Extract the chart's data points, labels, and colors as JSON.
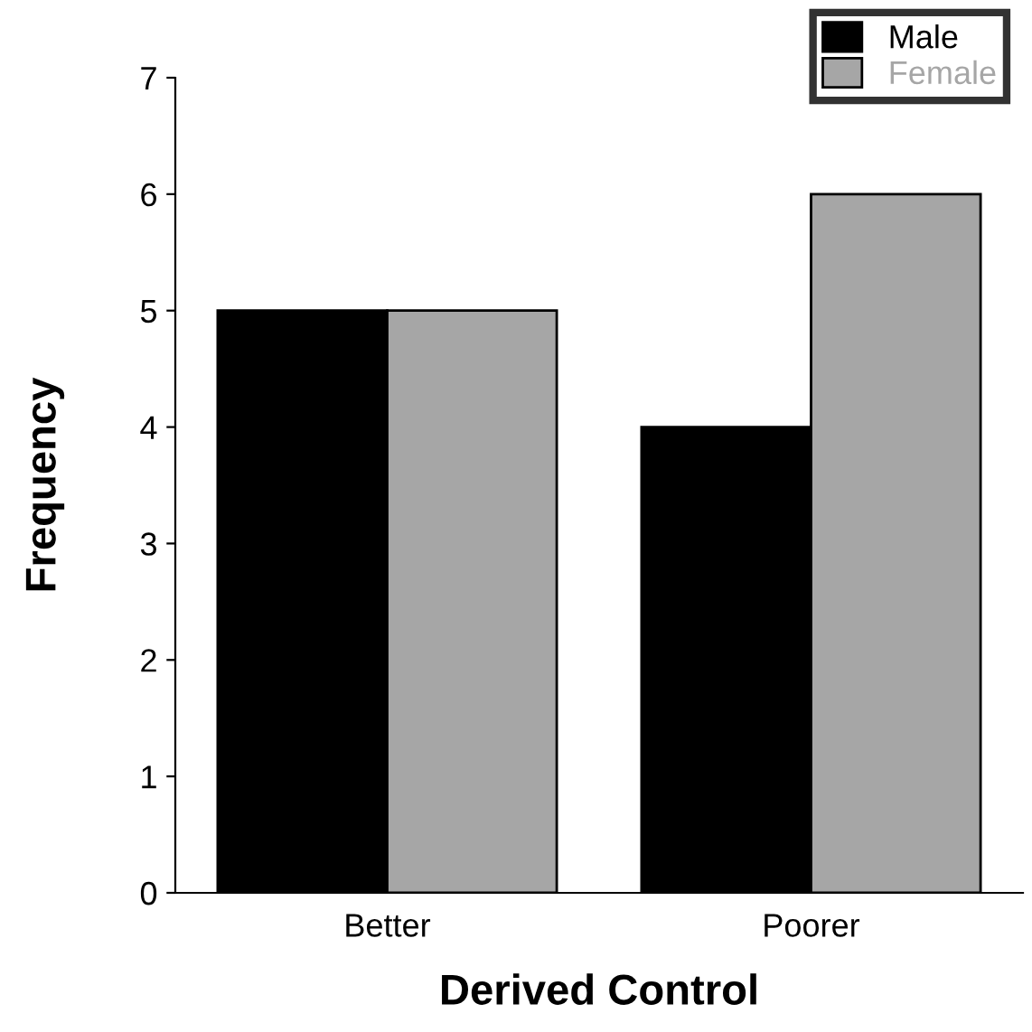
{
  "chart_data": {
    "type": "bar",
    "xlabel": "Derived Control",
    "ylabel": "Frequency",
    "categories": [
      "Better",
      "Poorer"
    ],
    "series": [
      {
        "name": "Male",
        "color": "#000000",
        "values": [
          5,
          4
        ]
      },
      {
        "name": "Female",
        "color": "#a6a6a6",
        "values": [
          5,
          6
        ]
      }
    ],
    "ylim": [
      0,
      7
    ],
    "yticks": [
      0,
      1,
      2,
      3,
      4,
      5,
      6,
      7
    ],
    "grid": false,
    "legend": "top right"
  }
}
